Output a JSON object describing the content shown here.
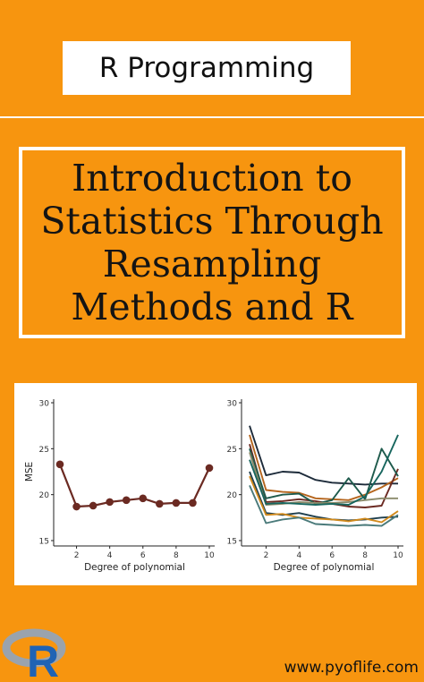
{
  "header": {
    "label": "R Programming"
  },
  "title": {
    "lines": [
      "Introduction to",
      "Statistics Through",
      "Resampling",
      "Methods and R"
    ]
  },
  "chart_data": [
    {
      "type": "line",
      "xlabel": "Degree of polynomial",
      "ylabel": "MSE",
      "xlim": [
        1,
        10
      ],
      "ylim": [
        15,
        30
      ],
      "xticks": [
        2,
        4,
        6,
        8,
        10
      ],
      "yticks": [
        15,
        20,
        25,
        30
      ],
      "x": [
        1,
        2,
        3,
        4,
        5,
        6,
        7,
        8,
        9,
        10
      ],
      "series": [
        {
          "values": [
            23.3,
            18.7,
            18.8,
            19.2,
            19.4,
            19.6,
            19.0,
            19.1,
            19.1,
            22.9
          ],
          "color": "#6b2a22"
        }
      ]
    },
    {
      "type": "line",
      "xlabel": "Degree of polynomial",
      "xlim": [
        1,
        10
      ],
      "ylim": [
        15,
        30
      ],
      "xticks": [
        2,
        4,
        6,
        8,
        10
      ],
      "yticks": [
        15,
        20,
        25,
        30
      ],
      "x": [
        1,
        2,
        3,
        4,
        5,
        6,
        7,
        8,
        9,
        10
      ],
      "series": [
        {
          "values": [
            27.5,
            22.1,
            22.5,
            22.4,
            21.6,
            21.3,
            21.2,
            21.1,
            21.2,
            21.2
          ],
          "color": "#1d2b3a"
        },
        {
          "values": [
            26.5,
            20.5,
            20.3,
            20.2,
            19.6,
            19.5,
            19.4,
            20.0,
            20.8,
            21.8
          ],
          "color": "#b5651d"
        },
        {
          "values": [
            25.5,
            19.2,
            19.3,
            19.5,
            19.3,
            19.0,
            18.7,
            18.6,
            18.8,
            22.8
          ],
          "color": "#6b2a22"
        },
        {
          "values": [
            25.0,
            19.6,
            20.0,
            20.1,
            19.0,
            19.4,
            21.8,
            19.5,
            25.0,
            22.0
          ],
          "color": "#1e5a4c"
        },
        {
          "values": [
            24.6,
            18.9,
            19.0,
            19.2,
            19.1,
            19.1,
            19.2,
            19.4,
            19.6,
            19.6
          ],
          "color": "#8a8a6a"
        },
        {
          "values": [
            23.8,
            19.0,
            19.1,
            19.0,
            18.9,
            19.0,
            18.9,
            19.8,
            22.5,
            26.5
          ],
          "color": "#17665e"
        },
        {
          "values": [
            22.5,
            18.0,
            17.8,
            18.0,
            17.6,
            17.3,
            17.2,
            17.3,
            17.5,
            17.6
          ],
          "color": "#1f3f4d"
        },
        {
          "values": [
            22.0,
            17.8,
            17.9,
            17.5,
            17.4,
            17.3,
            17.1,
            17.4,
            17.0,
            18.2
          ],
          "color": "#d18a1c"
        },
        {
          "values": [
            21.0,
            16.9,
            17.3,
            17.5,
            16.8,
            16.7,
            16.6,
            16.7,
            16.6,
            17.8
          ],
          "color": "#4a7a7a"
        }
      ]
    }
  ],
  "logo": {
    "text": "R",
    "colors": {
      "ring": "#9aa3ad",
      "letter": "#1f63b4"
    }
  },
  "footer": {
    "website": "www.pyoflife.com"
  }
}
